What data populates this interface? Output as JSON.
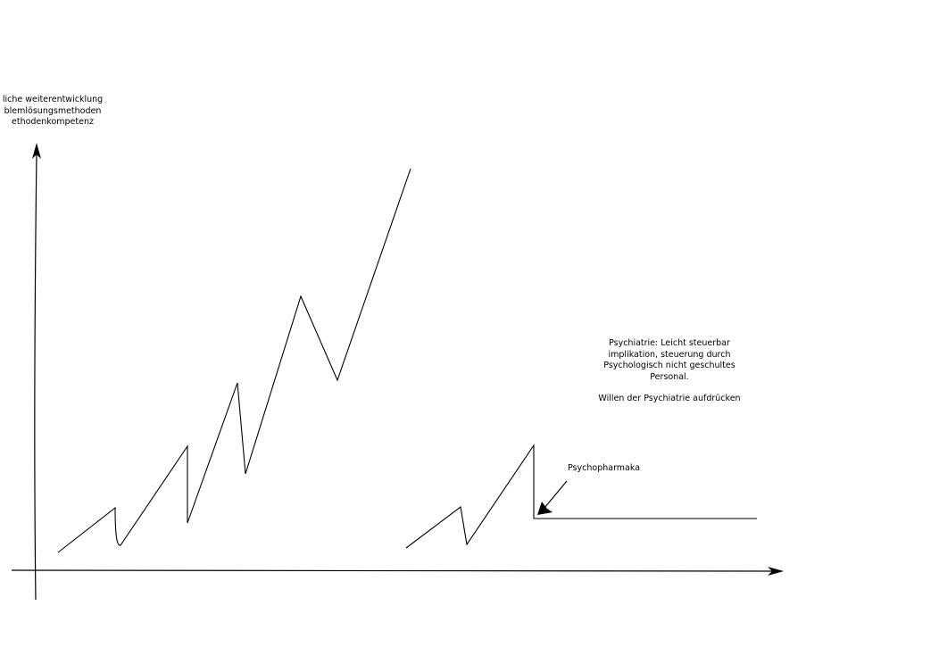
{
  "diagram": {
    "y_axis_label": {
      "lines": [
        "liche weiterentwicklung",
        "blemlösungsmethoden",
        "ethodenkompetenz"
      ]
    },
    "annotation": {
      "lines": [
        "Psychiatrie: Leicht steuerbar",
        "implikation, steuerung durch",
        "Psychologisch nicht geschultes",
        "Personal."
      ],
      "second_paragraph": "Willen der Psychiatrie aufdrücken"
    },
    "arrow_label": "Psychopharmaka",
    "stroke_color": "#000000",
    "background_color": "#ffffff"
  }
}
